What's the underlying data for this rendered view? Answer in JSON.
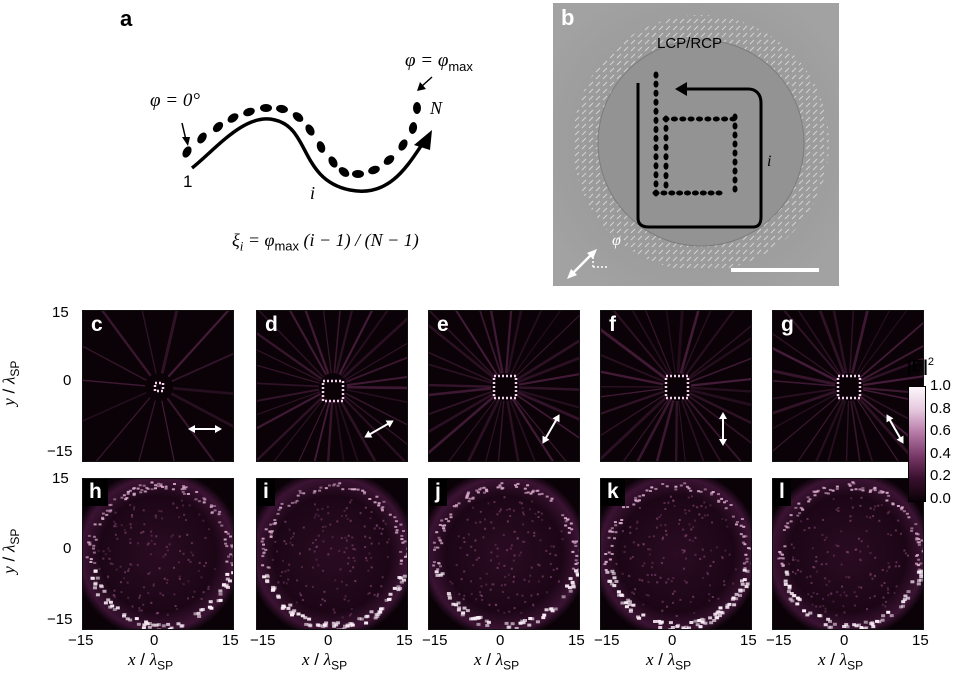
{
  "panel_a": {
    "letter": "a",
    "phi_start": "φ = 0°",
    "phi_end_lhs": "φ = φ",
    "phi_end_sub": "max",
    "label_1": "1",
    "label_i": "i",
    "label_N": "N",
    "formula_xi": "ξ",
    "formula_i_sub": "i",
    "formula_eq": " = φ",
    "formula_max": "max",
    "formula_rest": " (i − 1) / (N − 1)"
  },
  "panel_b": {
    "letter": "b",
    "polarization": "LCP/RCP",
    "label_i": "i",
    "label_phi": "φ"
  },
  "top_row_panels": [
    "c",
    "d",
    "e",
    "f",
    "g"
  ],
  "bottom_row_panels": [
    "h",
    "i",
    "j",
    "k",
    "l"
  ],
  "axes": {
    "y_ticks": [
      "15",
      "0",
      "−15"
    ],
    "x_ticks": [
      "−15",
      "0",
      "15"
    ],
    "x_label_var": "x",
    "x_label_sep": " / ",
    "x_label_lambda": "λ",
    "x_label_sub": "SP",
    "y_label_var": "y",
    "y_label_sep": " / ",
    "y_label_lambda": "λ",
    "y_label_sub": "SP"
  },
  "colorbar": {
    "title_main": "|E|",
    "title_sup": "2",
    "ticks": [
      "1.0",
      "0.8",
      "0.6",
      "0.4",
      "0.2",
      "0.0"
    ],
    "colormap": [
      "#0b0208",
      "#3a0f2e",
      "#7a3a6a",
      "#b67aa6",
      "#e6c8df",
      "#fdf6fb"
    ]
  },
  "polarization_angles_deg": [
    0,
    30,
    60,
    90,
    120
  ]
}
